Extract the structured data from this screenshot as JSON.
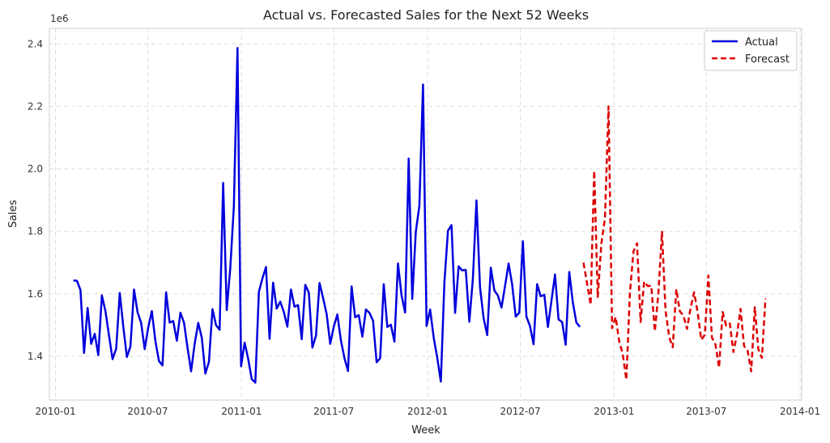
{
  "chart_data": {
    "type": "line",
    "title": "Actual vs. Forecasted Sales for the Next 52 Weeks",
    "xlabel": "Week",
    "ylabel": "Sales",
    "y_offset_label": "1e6",
    "xlim": [
      "2009-12-20",
      "2014-01-04"
    ],
    "ylim": [
      1.26,
      2.45
    ],
    "grid": true,
    "legend_position": "top-right",
    "x_ticks": [
      "2010-01",
      "2010-07",
      "2011-01",
      "2011-07",
      "2012-01",
      "2012-07",
      "2013-01",
      "2013-07",
      "2014-01"
    ],
    "y_ticks": [
      1.4,
      1.6,
      1.8,
      2.0,
      2.2,
      2.4
    ],
    "series": [
      {
        "name": "Actual",
        "color": "#0000dd",
        "style": "solid",
        "start_date": "2010-02-05",
        "values": [
          1.643,
          1.642,
          1.612,
          1.411,
          1.555,
          1.44,
          1.472,
          1.404,
          1.595,
          1.545,
          1.467,
          1.391,
          1.425,
          1.603,
          1.494,
          1.398,
          1.432,
          1.614,
          1.541,
          1.507,
          1.423,
          1.493,
          1.545,
          1.449,
          1.385,
          1.371,
          1.605,
          1.508,
          1.513,
          1.45,
          1.54,
          1.508,
          1.427,
          1.352,
          1.44,
          1.507,
          1.46,
          1.345,
          1.382,
          1.551,
          1.5,
          1.485,
          1.955,
          1.548,
          1.683,
          1.88,
          2.387,
          1.368,
          1.444,
          1.392,
          1.327,
          1.316,
          1.606,
          1.65,
          1.686,
          1.456,
          1.636,
          1.553,
          1.575,
          1.542,
          1.495,
          1.614,
          1.559,
          1.564,
          1.455,
          1.629,
          1.604,
          1.428,
          1.466,
          1.635,
          1.587,
          1.535,
          1.44,
          1.495,
          1.534,
          1.451,
          1.394,
          1.353,
          1.624,
          1.525,
          1.532,
          1.463,
          1.55,
          1.539,
          1.514,
          1.381,
          1.394,
          1.631,
          1.494,
          1.501,
          1.447,
          1.697,
          1.595,
          1.54,
          2.033,
          1.584,
          1.799,
          1.882,
          2.27,
          1.497,
          1.55,
          1.46,
          1.395,
          1.319,
          1.636,
          1.802,
          1.82,
          1.539,
          1.688,
          1.675,
          1.677,
          1.511,
          1.649,
          1.899,
          1.621,
          1.521,
          1.468,
          1.684,
          1.611,
          1.595,
          1.556,
          1.625,
          1.697,
          1.63,
          1.527,
          1.54,
          1.769,
          1.527,
          1.497,
          1.439,
          1.631,
          1.592,
          1.597,
          1.494,
          1.577,
          1.662,
          1.518,
          1.51,
          1.437,
          1.67,
          1.573,
          1.508,
          1.494
        ]
      },
      {
        "name": "Forecast",
        "color": "#dd0000",
        "style": "dashed",
        "start_date": "2012-11-02",
        "values": [
          1.7,
          1.633,
          1.565,
          1.994,
          1.59,
          1.76,
          1.843,
          2.2,
          1.49,
          1.526,
          1.448,
          1.407,
          1.325,
          1.603,
          1.736,
          1.762,
          1.51,
          1.639,
          1.625,
          1.626,
          1.48,
          1.603,
          1.799,
          1.546,
          1.462,
          1.429,
          1.615,
          1.544,
          1.531,
          1.488,
          1.554,
          1.605,
          1.54,
          1.453,
          1.469,
          1.659,
          1.46,
          1.438,
          1.364,
          1.542,
          1.498,
          1.505,
          1.414,
          1.469,
          1.552,
          1.433,
          1.418,
          1.352,
          1.557,
          1.423,
          1.395,
          1.585
        ]
      }
    ]
  }
}
